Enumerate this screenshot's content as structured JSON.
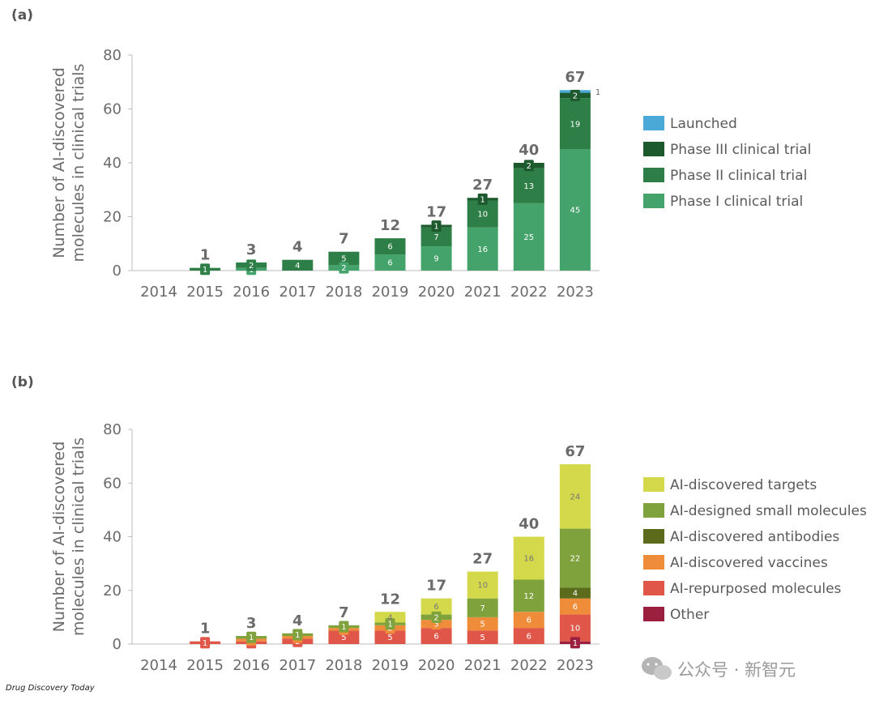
{
  "source_note": "Drug Discovery Today",
  "watermark": "公众号 · 新智元",
  "chart_data": [
    {
      "panel_label": "(a)",
      "type": "bar",
      "stacked": true,
      "ylabel": [
        "Number of AI-discovered",
        "molecules in clinical trials"
      ],
      "xlabel": "",
      "ylim": [
        0,
        80
      ],
      "yticks": [
        0,
        20,
        40,
        60,
        80
      ],
      "categories": [
        "2014",
        "2015",
        "2016",
        "2017",
        "2018",
        "2019",
        "2020",
        "2021",
        "2022",
        "2023"
      ],
      "totals": [
        "",
        "1",
        "3",
        "4",
        "7",
        "12",
        "17",
        "27",
        "40",
        "67"
      ],
      "legend_position": "right",
      "series": [
        {
          "name": "Phase I clinical trial",
          "color": "#43a36b",
          "label_color": "#ffffff",
          "values": [
            0,
            0,
            1,
            0,
            2,
            6,
            9,
            16,
            25,
            45
          ]
        },
        {
          "name": "Phase II clinical trial",
          "color": "#2e7f47",
          "label_color": "#ffffff",
          "values": [
            0,
            1,
            2,
            4,
            5,
            6,
            7,
            10,
            13,
            19
          ]
        },
        {
          "name": "Phase III clinical trial",
          "color": "#1c5a2e",
          "label_color": "#ffffff",
          "values": [
            0,
            0,
            0,
            0,
            0,
            0,
            1,
            1,
            2,
            2
          ]
        },
        {
          "name": "Launched",
          "color": "#4aa9d6",
          "label_color": "#555555",
          "values": [
            0,
            0,
            0,
            0,
            0,
            0,
            0,
            0,
            0,
            1
          ]
        }
      ]
    },
    {
      "panel_label": "(b)",
      "type": "bar",
      "stacked": true,
      "ylabel": [
        "Number of AI-discovered",
        "molecules in clinical trials"
      ],
      "xlabel": "",
      "ylim": [
        0,
        80
      ],
      "yticks": [
        0,
        20,
        40,
        60,
        80
      ],
      "categories": [
        "2014",
        "2015",
        "2016",
        "2017",
        "2018",
        "2019",
        "2020",
        "2021",
        "2022",
        "2023"
      ],
      "totals": [
        "",
        "1",
        "3",
        "4",
        "7",
        "12",
        "17",
        "27",
        "40",
        "67"
      ],
      "legend_position": "right",
      "series": [
        {
          "name": "Other",
          "color": "#9b2040",
          "label_color": "#ffffff",
          "values": [
            0,
            0,
            0,
            0,
            0,
            0,
            0,
            0,
            0,
            1
          ]
        },
        {
          "name": "AI-repurposed molecules",
          "color": "#e0574a",
          "label_color": "#ffffff",
          "values": [
            0,
            1,
            1,
            2,
            5,
            5,
            6,
            5,
            6,
            10
          ]
        },
        {
          "name": "AI-discovered vaccines",
          "color": "#ee8c3a",
          "label_color": "#ffffff",
          "values": [
            0,
            0,
            1,
            1,
            1,
            2,
            3,
            5,
            6,
            6
          ]
        },
        {
          "name": "AI-discovered antibodies",
          "color": "#5c6a1c",
          "label_color": "#ffffff",
          "values": [
            0,
            0,
            0,
            0,
            0,
            0,
            0,
            0,
            0,
            4
          ]
        },
        {
          "name": "AI-designed small molecules",
          "color": "#7fa23c",
          "label_color": "#ffffff",
          "values": [
            0,
            0,
            1,
            1,
            1,
            1,
            2,
            7,
            12,
            22
          ]
        },
        {
          "name": "AI-discovered targets",
          "color": "#d3d94a",
          "label_color": "#777777",
          "values": [
            0,
            0,
            0,
            0,
            0,
            4,
            6,
            10,
            16,
            24
          ]
        }
      ]
    }
  ]
}
